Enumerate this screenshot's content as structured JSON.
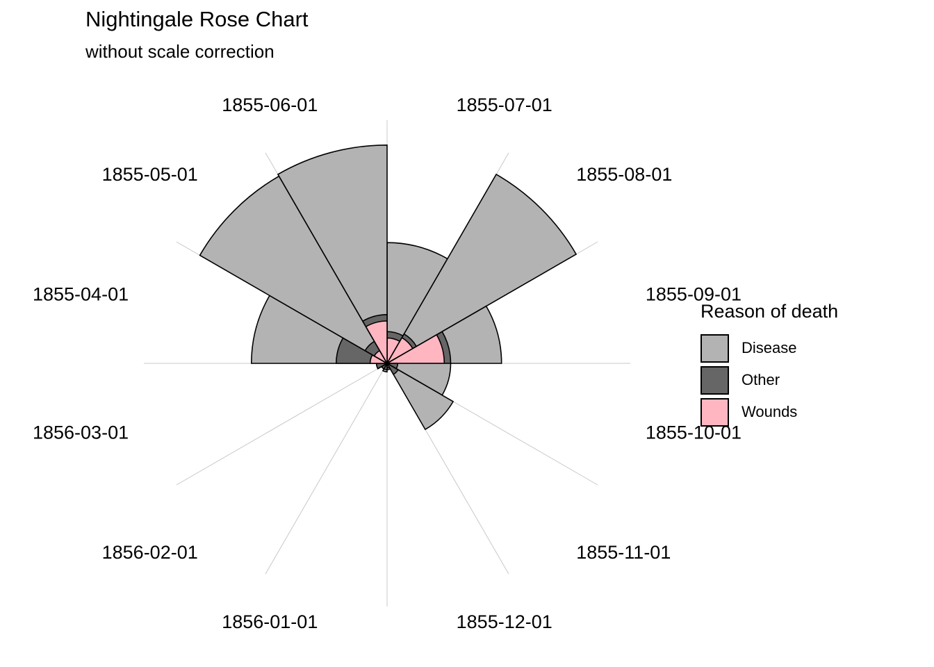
{
  "chart_data": {
    "type": "rose",
    "title": "Nightingale Rose Chart",
    "subtitle": "without scale correction",
    "categories": [
      "1855-07-01",
      "1855-08-01",
      "1855-09-01",
      "1855-10-01",
      "1855-11-01",
      "1855-12-01",
      "1856-01-01",
      "1856-02-01",
      "1856-03-01",
      "1855-04-01",
      "1855-05-01",
      "1855-06-01"
    ],
    "series": [
      {
        "name": "Disease",
        "color": "#b3b3b3",
        "values": [
          5.7,
          10.3,
          5.4,
          3.0,
          3.6,
          0.2,
          0.4,
          0.3,
          0.5,
          6.4,
          10.2,
          10.3
        ]
      },
      {
        "name": "Other",
        "color": "#666666",
        "values": [
          1.5,
          1.6,
          3.0,
          0.5,
          0.6,
          0.3,
          0.3,
          0.3,
          0.5,
          2.4,
          1.2,
          2.3
        ]
      },
      {
        "name": "Wounds",
        "color": "#ffb6c1",
        "values": [
          1.2,
          1.4,
          2.7,
          0.1,
          0.1,
          0.05,
          0.1,
          0.1,
          0.1,
          0.8,
          0.7,
          2.0
        ]
      }
    ],
    "legend": {
      "title": "Reason of death",
      "position": "right"
    },
    "grid": "radial lines only"
  }
}
